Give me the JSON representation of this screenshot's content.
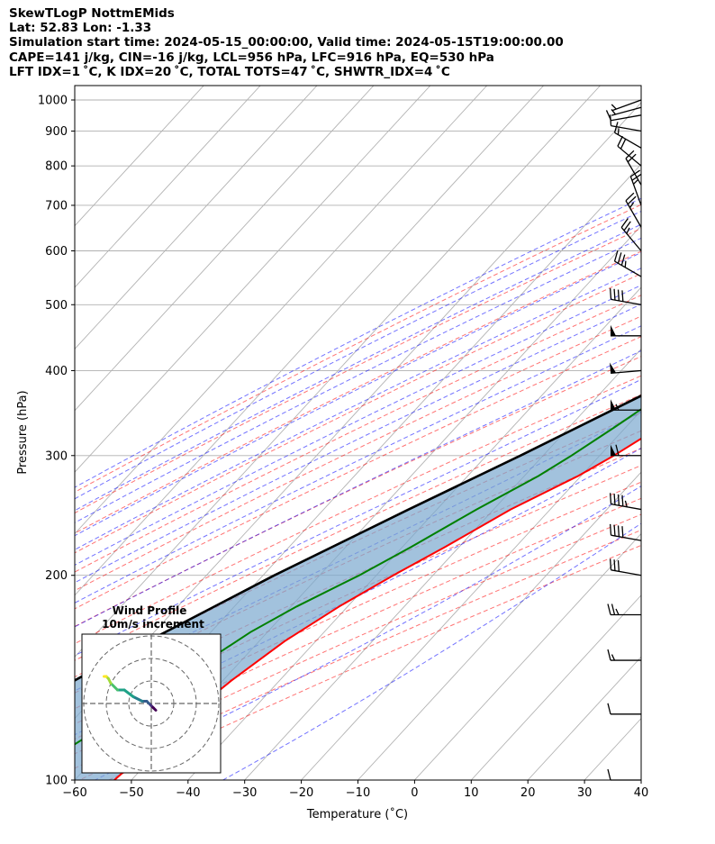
{
  "header": {
    "lines": [
      "SkewTLogP NottmEMids",
      "Lat: 52.83   Lon: -1.33",
      "Simulation start time: 2024-05-15_00:00:00, Valid time: 2024-05-15T19:00:00.00",
      "CAPE=141 j/kg, CIN=-16 j/kg, LCL=956 hPa, LFC=916 hPa, EQ=530 hPa",
      "LFT IDX=1 ˚C, K IDX=20 ˚C, TOTAL TOTS=47 ˚C, SHWTR_IDX=4 ˚C"
    ]
  },
  "chart_data": [
    {
      "type": "line",
      "subtype": "skew-t log-p",
      "xlabel": "Temperature (˚C)",
      "ylabel": "Pressure (hPa)",
      "xlim": [
        -60,
        40
      ],
      "ylim": [
        1050,
        100
      ],
      "yscale": "log",
      "xticks": [
        -60,
        -50,
        -40,
        -30,
        -20,
        -10,
        0,
        10,
        20,
        30,
        40
      ],
      "yticks": [
        100,
        200,
        300,
        400,
        500,
        600,
        700,
        800,
        900,
        1000
      ],
      "grid": true,
      "series": [
        {
          "role": "temperature",
          "color": "#ff0000",
          "points": [
            [
              1000,
              17.0
            ],
            [
              970,
              15.5
            ],
            [
              925,
              13.5
            ],
            [
              850,
              10.0
            ],
            [
              800,
              8.3
            ],
            [
              700,
              5.4
            ],
            [
              600,
              1.7
            ],
            [
              500,
              -2.3
            ],
            [
              450,
              -4.5
            ],
            [
              400,
              -7.5
            ],
            [
              350,
              -12.0
            ],
            [
              300,
              -17.5
            ],
            [
              280,
              -20.5
            ],
            [
              250,
              -27.0
            ],
            [
              220,
              -32.5
            ],
            [
              200,
              -37.0
            ],
            [
              180,
              -41.5
            ],
            [
              160,
              -45.5
            ],
            [
              140,
              -48.5
            ],
            [
              120,
              -51.0
            ],
            [
              100,
              -53.0
            ]
          ]
        },
        {
          "role": "dewpoint",
          "color": "#008000",
          "points": [
            [
              1000,
              14.0
            ],
            [
              975,
              14.0
            ],
            [
              950,
              13.0
            ],
            [
              900,
              10.5
            ],
            [
              850,
              7.0
            ],
            [
              800,
              2.0
            ],
            [
              750,
              1.0
            ],
            [
              700,
              2.5
            ],
            [
              650,
              -1.0
            ],
            [
              600,
              -6.0
            ],
            [
              560,
              -12.0
            ],
            [
              500,
              -17.0
            ],
            [
              470,
              -15.0
            ],
            [
              440,
              -14.0
            ],
            [
              400,
              -16.5
            ],
            [
              360,
              -19.5
            ],
            [
              330,
              -22.0
            ],
            [
              300,
              -25.0
            ],
            [
              280,
              -27.5
            ],
            [
              250,
              -33.0
            ],
            [
              220,
              -38.5
            ],
            [
              200,
              -43.0
            ],
            [
              180,
              -49.0
            ],
            [
              165,
              -53.0
            ],
            [
              150,
              -56.0
            ],
            [
              100,
              -70.0
            ]
          ]
        },
        {
          "role": "parcel",
          "color": "#000000",
          "points": [
            [
              1000,
              17.0
            ],
            [
              956,
              14.5
            ],
            [
              900,
              12.8
            ],
            [
              800,
              9.4
            ],
            [
              700,
              5.3
            ],
            [
              600,
              0.3
            ],
            [
              530,
              -4.0
            ],
            [
              500,
              -6.5
            ],
            [
              400,
              -17.5
            ],
            [
              300,
              -34.0
            ],
            [
              250,
              -45.0
            ],
            [
              200,
              -58.0
            ],
            [
              150,
              -73.0
            ],
            [
              100,
              -92.0
            ]
          ]
        }
      ],
      "shading": {
        "cape_color": "#ff0000",
        "cin_color": "#1f77b4"
      },
      "reference_lines": {
        "dry_adiabats_color": "#ff0000",
        "moist_adiabats_color": "#0000ff",
        "mixing_ratio_color": "#8b008b",
        "isotherms_color": "#808080"
      }
    },
    {
      "type": "wind-barbs",
      "levels_hPa": [
        1000,
        975,
        950,
        900,
        850,
        800,
        750,
        700,
        650,
        600,
        550,
        500,
        450,
        400,
        350,
        300,
        250,
        225,
        200,
        175,
        150,
        125,
        100
      ],
      "dir_deg": [
        250,
        255,
        260,
        280,
        300,
        310,
        330,
        340,
        330,
        320,
        300,
        280,
        270,
        265,
        270,
        270,
        280,
        280,
        280,
        270,
        270,
        270,
        270
      ],
      "speed_kt": [
        5,
        8,
        10,
        12,
        15,
        20,
        22,
        25,
        25,
        25,
        35,
        40,
        50,
        50,
        55,
        60,
        45,
        40,
        30,
        25,
        15,
        10,
        10
      ]
    },
    {
      "type": "hodograph",
      "title": "Wind Profile",
      "subtitle": "10m/s increment",
      "ring_spacing_ms": 10,
      "rings": 3,
      "points_ms": [
        [
          2,
          -3
        ],
        [
          1,
          -2
        ],
        [
          0,
          -1
        ],
        [
          -1,
          0
        ],
        [
          -2,
          1
        ],
        [
          -4,
          1
        ],
        [
          -8,
          3
        ],
        [
          -12,
          6
        ],
        [
          -15,
          6
        ],
        [
          -18,
          9
        ],
        [
          -19,
          11
        ],
        [
          -20,
          12
        ],
        [
          -21,
          12
        ]
      ],
      "colormap": "viridis"
    }
  ]
}
